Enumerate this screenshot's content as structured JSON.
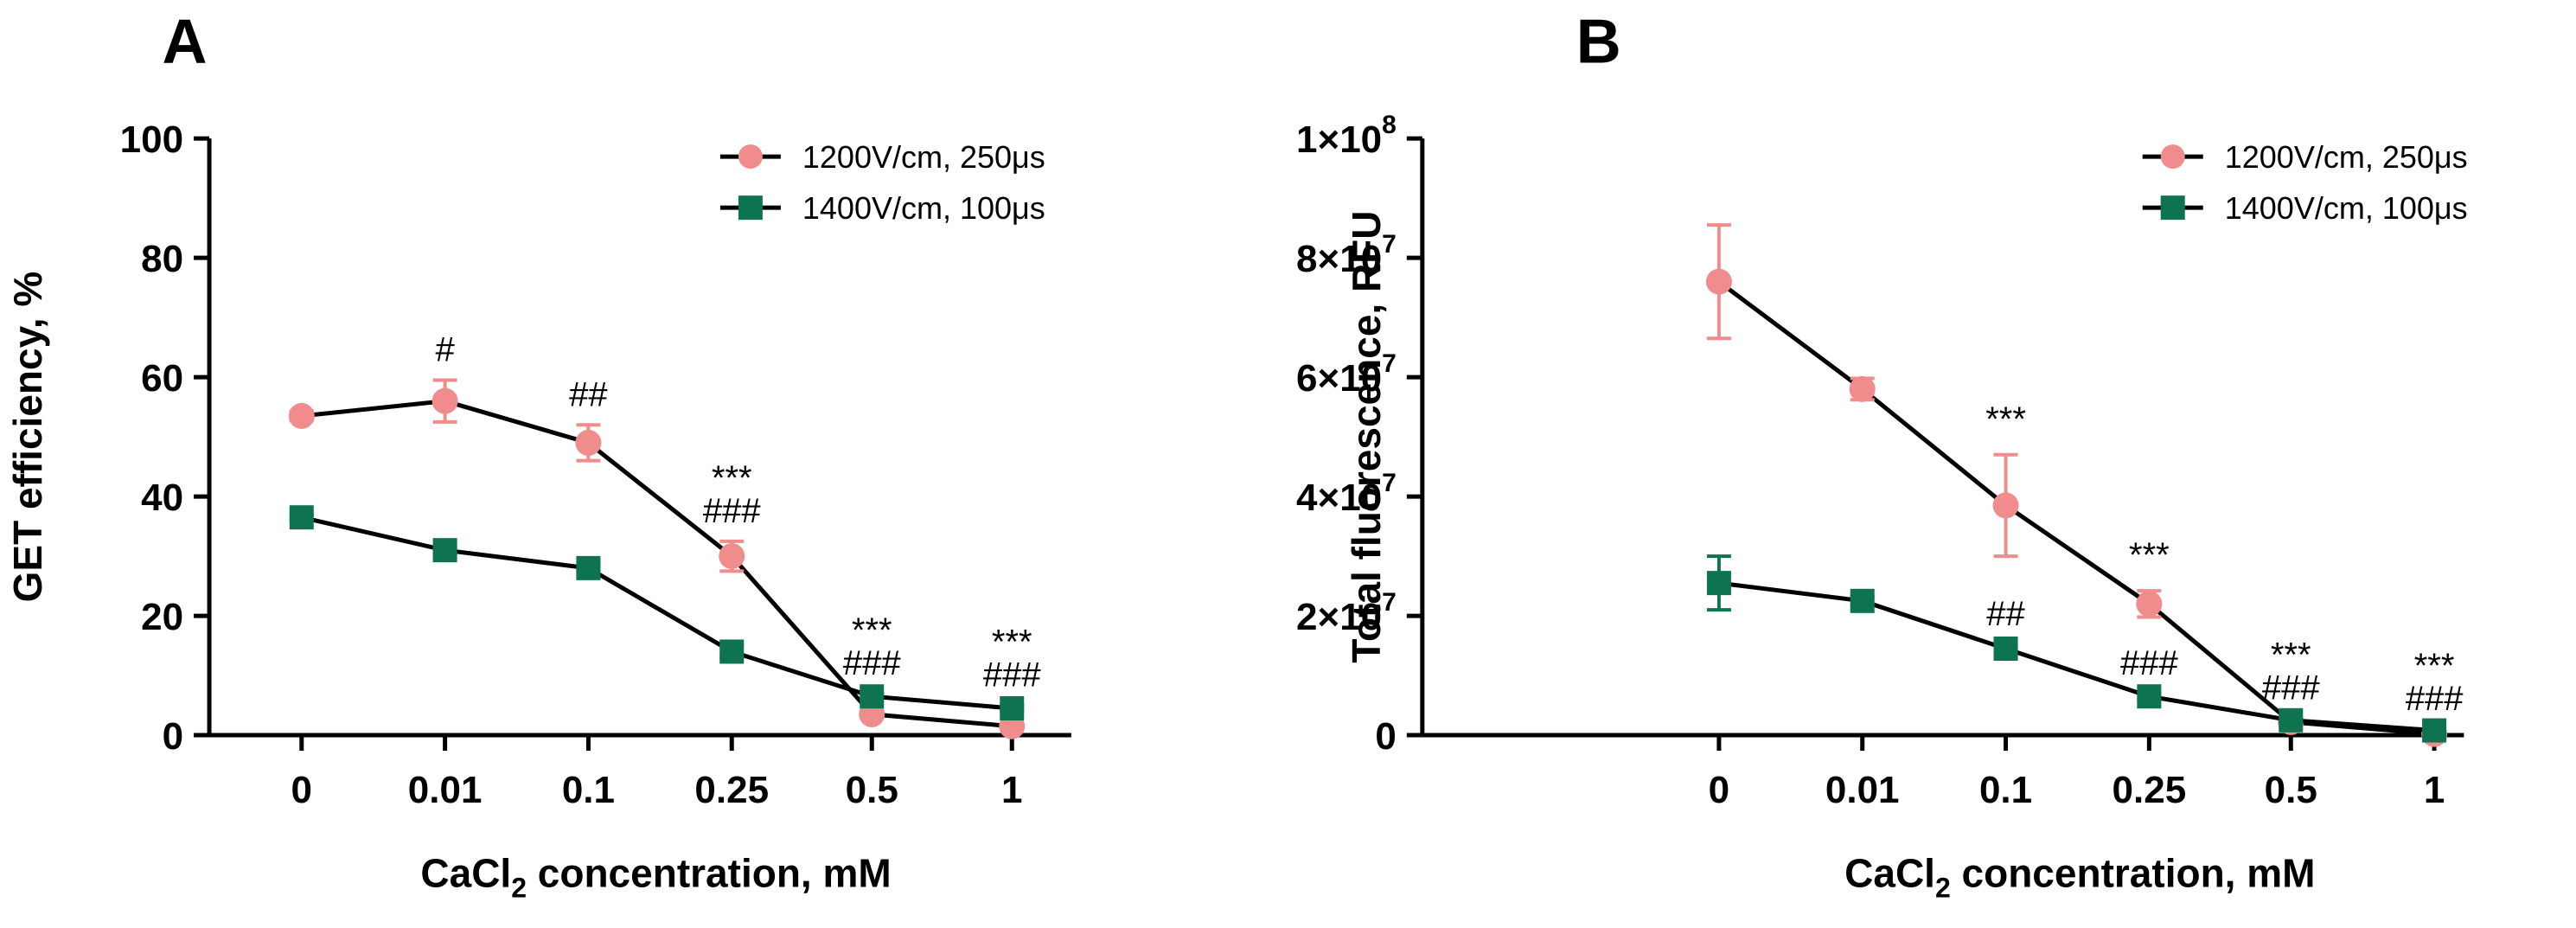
{
  "chart_data": [
    {
      "panel": "A",
      "type": "line",
      "categories": [
        "0",
        "0.01",
        "0.1",
        "0.25",
        "0.5",
        "1"
      ],
      "xlabel_main": "CaCl",
      "xlabel_sub": "2",
      "xlabel_rest": " concentration, mM",
      "ylabel": "GET efficiency, %",
      "ylim": [
        0,
        100
      ],
      "yticks": [
        {
          "value": 0,
          "label": "0"
        },
        {
          "value": 20,
          "label": "20"
        },
        {
          "value": 40,
          "label": "40"
        },
        {
          "value": 60,
          "label": "60"
        },
        {
          "value": 80,
          "label": "80"
        },
        {
          "value": 100,
          "label": "100"
        }
      ],
      "series": [
        {
          "name": "1200V/cm, 250μs",
          "marker": "circle",
          "color": "#F08C8C",
          "values": [
            53.5,
            56,
            49,
            30,
            3.5,
            1.5
          ],
          "errors": [
            0.8,
            3.5,
            3,
            2.5,
            0.5,
            0.5
          ]
        },
        {
          "name": "1400V/cm, 100μs",
          "marker": "square",
          "color": "#0E7450",
          "values": [
            36.5,
            31,
            28,
            14,
            6.5,
            4.5
          ],
          "errors": [
            0.5,
            0.5,
            0.5,
            1,
            0.5,
            0.5
          ]
        }
      ],
      "annotations": [
        {
          "category_index": 1,
          "lines": [
            "#"
          ]
        },
        {
          "category_index": 2,
          "lines": [
            "##"
          ]
        },
        {
          "category_index": 3,
          "lines": [
            "***",
            "###"
          ]
        },
        {
          "category_index": 4,
          "lines": [
            "***",
            "###"
          ]
        },
        {
          "category_index": 5,
          "lines": [
            "***",
            "###"
          ]
        }
      ]
    },
    {
      "panel": "B",
      "type": "line",
      "categories": [
        "0",
        "0.01",
        "0.1",
        "0.25",
        "0.5",
        "1"
      ],
      "xlabel_main": "CaCl",
      "xlabel_sub": "2",
      "xlabel_rest": " concentration, mM",
      "ylabel": "Total fluorescence, RFU",
      "ylim": [
        0,
        100000000
      ],
      "yticks": [
        {
          "value": 0,
          "label": "0"
        },
        {
          "value": 20000000,
          "label": "2×10",
          "exp": "7"
        },
        {
          "value": 40000000,
          "label": "4×10",
          "exp": "7"
        },
        {
          "value": 60000000,
          "label": "6×10",
          "exp": "7"
        },
        {
          "value": 80000000,
          "label": "8×10",
          "exp": "7"
        },
        {
          "value": 100000000,
          "label": "1×10",
          "exp": "8"
        }
      ],
      "series": [
        {
          "name": "1200V/cm, 250μs",
          "marker": "circle",
          "color": "#F08C8C",
          "values": [
            76000000,
            58000000,
            38500000,
            22000000,
            2200000,
            200000
          ],
          "errors": [
            9500000,
            1800000,
            8500000,
            2200000,
            300000,
            200000
          ]
        },
        {
          "name": "1400V/cm, 100μs",
          "marker": "square",
          "color": "#0E7450",
          "values": [
            25500000,
            22500000,
            14500000,
            6500000,
            2500000,
            800000
          ],
          "errors": [
            4500000,
            600000,
            700000,
            500000,
            300000,
            200000
          ]
        }
      ],
      "annotations": [
        {
          "category_index": 2,
          "lines": [
            "***"
          ]
        },
        {
          "category_index": 3,
          "lines": [
            "***"
          ]
        },
        {
          "category_index": 2,
          "lines": [
            "##"
          ],
          "anchor": "lower"
        },
        {
          "category_index": 3,
          "lines": [
            "###"
          ],
          "anchor": "lower"
        },
        {
          "category_index": 4,
          "lines": [
            "***",
            "###"
          ]
        },
        {
          "category_index": 5,
          "lines": [
            "***",
            "###"
          ]
        }
      ]
    }
  ]
}
